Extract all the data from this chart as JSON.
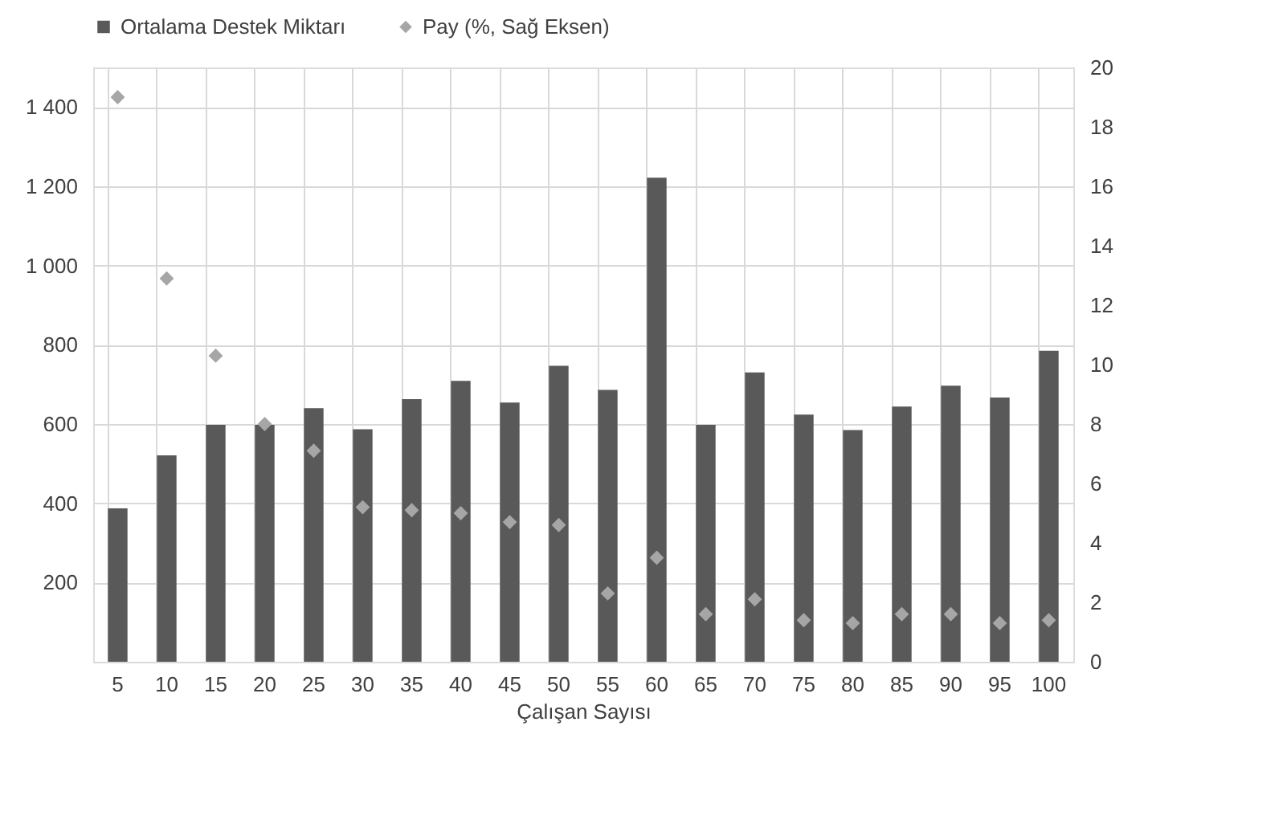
{
  "chart_data": {
    "type": "bar",
    "xlabel": "Çalışan Sayısı",
    "categories": [
      "5",
      "10",
      "15",
      "20",
      "25",
      "30",
      "35",
      "40",
      "45",
      "50",
      "55",
      "60",
      "65",
      "70",
      "75",
      "80",
      "85",
      "90",
      "95",
      "100"
    ],
    "series": [
      {
        "name": "Ortalama Destek Miktarı",
        "color": "#595959",
        "values": [
          387,
          521,
          598,
          598,
          640,
          587,
          663,
          709,
          654,
          747,
          686,
          1222,
          598,
          730,
          624,
          585,
          644,
          697,
          667,
          785
        ]
      },
      {
        "name": "Pay (%, Sağ Eksen)",
        "type": "scatter",
        "axis": "y2",
        "marker": "diamond",
        "color": "#a6a6a6",
        "values": [
          19.0,
          12.9,
          10.3,
          8.0,
          7.1,
          5.2,
          5.1,
          5.0,
          4.7,
          4.6,
          2.3,
          3.5,
          1.6,
          2.1,
          1.4,
          1.3,
          1.6,
          1.6,
          1.3,
          1.4
        ]
      }
    ],
    "ylim": [
      0,
      1500
    ],
    "yticks": [
      {
        "value": 200,
        "label": "200"
      },
      {
        "value": 400,
        "label": "400"
      },
      {
        "value": 600,
        "label": "600"
      },
      {
        "value": 800,
        "label": "800"
      },
      {
        "value": 1000,
        "label": "1 000"
      },
      {
        "value": 1200,
        "label": "1 200"
      },
      {
        "value": 1400,
        "label": "1 400"
      }
    ],
    "y2lim": [
      0,
      20
    ],
    "y2ticks": [
      0,
      2,
      4,
      6,
      8,
      10,
      12,
      14,
      16,
      18,
      20
    ],
    "grid": true,
    "legend": "top"
  }
}
